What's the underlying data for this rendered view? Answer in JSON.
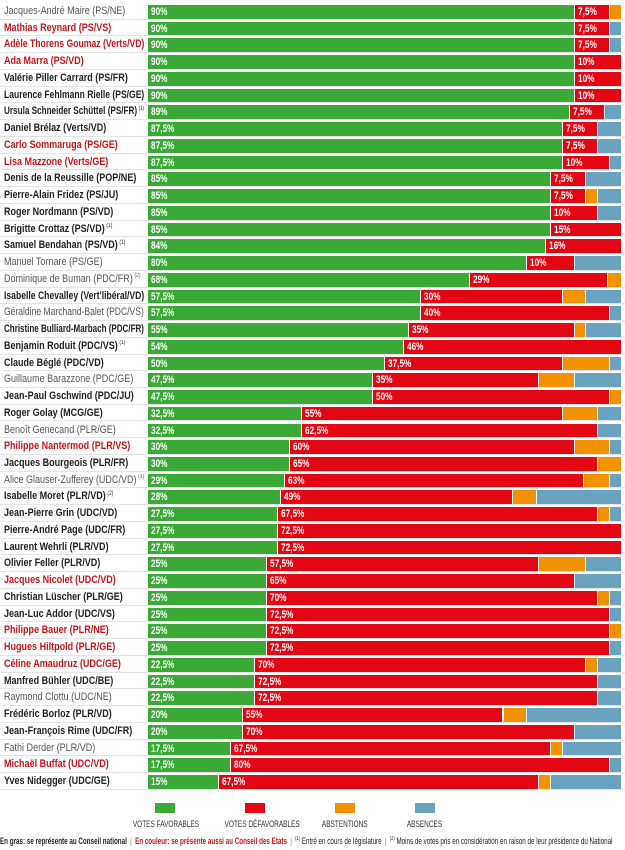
{
  "colors": {
    "favorable": "#3aa935",
    "defavorable": "#e30613",
    "abstention": "#f39200",
    "absence": "#6aa3bf",
    "name_red": "#c3161c"
  },
  "chart_data": {
    "type": "bar",
    "orientation": "horizontal-stacked-100",
    "unit": "%",
    "series_names": [
      "Votes favorables",
      "Votes défavorables",
      "Abstentions",
      "Absences"
    ],
    "rows": [
      {
        "name": "Jacques-André Maire (PS/NE)",
        "note": "",
        "style": "light",
        "fav": 90,
        "def": 7.5,
        "abst": 2.5,
        "abs": 0
      },
      {
        "name": "Mathias Reynard (PS/VS)",
        "note": "",
        "style": "red",
        "fav": 90,
        "def": 7.5,
        "abst": 0,
        "abs": 2.5
      },
      {
        "name": "Adèle Thorens Goumaz (Verts/VD)",
        "note": "",
        "style": "red",
        "fav": 90,
        "def": 7.5,
        "abst": 0,
        "abs": 2.5
      },
      {
        "name": "Ada Marra (PS/VD)",
        "note": "",
        "style": "red",
        "fav": 90,
        "def": 10,
        "abst": 0,
        "abs": 0
      },
      {
        "name": "Valérie Piller Carrard (PS/FR)",
        "note": "",
        "style": "bold",
        "fav": 90,
        "def": 10,
        "abst": 0,
        "abs": 0
      },
      {
        "name": "Laurence Fehlmann Rielle (PS/GE)",
        "note": "",
        "style": "bold",
        "fav": 90,
        "def": 10,
        "abst": 0,
        "abs": 0
      },
      {
        "name": "Ursula Schneider Schüttel (PS/FR)",
        "note": "1",
        "style": "bold",
        "fav": 89,
        "def": 7.5,
        "abst": 0,
        "abs": 3.5
      },
      {
        "name": "Daniel Brélaz (Verts/VD)",
        "note": "",
        "style": "bold",
        "fav": 87.5,
        "def": 7.5,
        "abst": 0,
        "abs": 5
      },
      {
        "name": "Carlo Sommaruga (PS/GE)",
        "note": "",
        "style": "red",
        "fav": 87.5,
        "def": 7.5,
        "abst": 0,
        "abs": 5
      },
      {
        "name": "Lisa Mazzone (Verts/GE)",
        "note": "",
        "style": "red",
        "fav": 87.5,
        "def": 10,
        "abst": 0,
        "abs": 2.5
      },
      {
        "name": "Denis de la Reussille (POP/NE)",
        "note": "",
        "style": "bold",
        "fav": 85,
        "def": 7.5,
        "abst": 0,
        "abs": 7.5
      },
      {
        "name": "Pierre-Alain Fridez (PS/JU)",
        "note": "",
        "style": "bold",
        "fav": 85,
        "def": 7.5,
        "abst": 2.5,
        "abs": 5
      },
      {
        "name": "Roger Nordmann (PS/VD)",
        "note": "",
        "style": "bold",
        "fav": 85,
        "def": 10,
        "abst": 0,
        "abs": 5
      },
      {
        "name": "Brigitte Crottaz (PS/VD)",
        "note": "1",
        "style": "bold",
        "fav": 85,
        "def": 15,
        "abst": 0,
        "abs": 0
      },
      {
        "name": "Samuel Bendahan (PS/VD)",
        "note": "1",
        "style": "bold",
        "fav": 84,
        "def": 16,
        "abst": 0,
        "abs": 0
      },
      {
        "name": "Manuel Tornare (PS/GE)",
        "note": "",
        "style": "light",
        "fav": 80,
        "def": 10,
        "abst": 0,
        "abs": 10
      },
      {
        "name": "Dominique de Buman (PDC/FR)",
        "note": "2",
        "style": "light",
        "fav": 68,
        "def": 29,
        "abst": 3,
        "abs": 0
      },
      {
        "name": "Isabelle Chevalley (Vert'libéral/VD)",
        "note": "",
        "style": "bold",
        "fav": 57.5,
        "def": 30,
        "abst": 5,
        "abs": 7.5
      },
      {
        "name": "Géraldine Marchand-Balet (PDC/VS)",
        "note": "",
        "style": "light",
        "fav": 57.5,
        "def": 40,
        "abst": 0,
        "abs": 2.5
      },
      {
        "name": "Christine Bulliard-Marbach (PDC/FR)",
        "note": "",
        "style": "bold",
        "fav": 55,
        "def": 35,
        "abst": 2.5,
        "abs": 7.5
      },
      {
        "name": "Benjamin Roduit (PDC/VS)",
        "note": "1",
        "style": "bold",
        "fav": 54,
        "def": 46,
        "abst": 0,
        "abs": 0
      },
      {
        "name": "Claude Béglé (PDC/VD)",
        "note": "",
        "style": "bold",
        "fav": 50,
        "def": 37.5,
        "abst": 10,
        "abs": 2.5
      },
      {
        "name": "Guillaume Barazzone (PDC/GE)",
        "note": "",
        "style": "light",
        "fav": 47.5,
        "def": 35,
        "abst": 7.5,
        "abs": 10
      },
      {
        "name": "Jean-Paul Gschwind (PDC/JU)",
        "note": "",
        "style": "bold",
        "fav": 47.5,
        "def": 50,
        "abst": 2.5,
        "abs": 0
      },
      {
        "name": "Roger Golay (MCG/GE)",
        "note": "",
        "style": "bold",
        "fav": 32.5,
        "def": 55,
        "abst": 7.5,
        "abs": 5
      },
      {
        "name": "Benoît Genecand (PLR/GE)",
        "note": "",
        "style": "light",
        "fav": 32.5,
        "def": 62.5,
        "abst": 0,
        "abs": 5
      },
      {
        "name": "Philippe Nantermod (PLR/VS)",
        "note": "",
        "style": "red",
        "fav": 30,
        "def": 60,
        "abst": 7.5,
        "abs": 2.5
      },
      {
        "name": "Jacques Bourgeois (PLR/FR)",
        "note": "",
        "style": "bold",
        "fav": 30,
        "def": 65,
        "abst": 5,
        "abs": 0
      },
      {
        "name": "Alice Glauser-Zufferey (UDC/VD)",
        "note": "1",
        "style": "light",
        "fav": 29,
        "def": 63,
        "abst": 5.5,
        "abs": 2.5
      },
      {
        "name": "Isabelle Moret (PLR/VD)",
        "note": "2",
        "style": "bold",
        "fav": 28,
        "def": 49,
        "abst": 5,
        "abs": 18
      },
      {
        "name": "Jean-Pierre Grin (UDC/VD)",
        "note": "",
        "style": "bold",
        "fav": 27.5,
        "def": 67.5,
        "abst": 2.5,
        "abs": 2.5
      },
      {
        "name": "Pierre-André Page (UDC/FR)",
        "note": "",
        "style": "bold",
        "fav": 27.5,
        "def": 72.5,
        "abst": 0,
        "abs": 0
      },
      {
        "name": "Laurent Wehrli (PLR/VD)",
        "note": "",
        "style": "bold",
        "fav": 27.5,
        "def": 72.5,
        "abst": 0,
        "abs": 0
      },
      {
        "name": "Olivier Feller (PLR/VD)",
        "note": "",
        "style": "bold",
        "fav": 25,
        "def": 57.5,
        "abst": 10,
        "abs": 7.5
      },
      {
        "name": "Jacques Nicolet (UDC/VD)",
        "note": "",
        "style": "red",
        "fav": 25,
        "def": 65,
        "abst": 0,
        "abs": 10
      },
      {
        "name": "Christian Lüscher (PLR/GE)",
        "note": "",
        "style": "bold",
        "fav": 25,
        "def": 70,
        "abst": 2.5,
        "abs": 2.5
      },
      {
        "name": "Jean-Luc Addor (UDC/VS)",
        "note": "",
        "style": "bold",
        "fav": 25,
        "def": 72.5,
        "abst": 0,
        "abs": 2.5
      },
      {
        "name": "Philippe Bauer (PLR/NE)",
        "note": "",
        "style": "red",
        "fav": 25,
        "def": 72.5,
        "abst": 2.5,
        "abs": 0
      },
      {
        "name": "Hugues Hiltpold (PLR/GE)",
        "note": "",
        "style": "red",
        "fav": 25,
        "def": 72.5,
        "abst": 0,
        "abs": 2.5
      },
      {
        "name": "Céline Amaudruz  (UDC/GE)",
        "note": "",
        "style": "red",
        "fav": 22.5,
        "def": 70,
        "abst": 2.5,
        "abs": 5
      },
      {
        "name": "Manfred Bühler (UDC/BE)",
        "note": "",
        "style": "bold",
        "fav": 22.5,
        "def": 72.5,
        "abst": 0,
        "abs": 5
      },
      {
        "name": "Raymond Clottu (UDC/NE)",
        "note": "",
        "style": "light",
        "fav": 22.5,
        "def": 72.5,
        "abst": 0,
        "abs": 5
      },
      {
        "name": "Frédéric Borloz (PLR/VD)",
        "note": "",
        "style": "bold",
        "fav": 20,
        "def": 55,
        "abst": 5,
        "abs": 20
      },
      {
        "name": "Jean-François Rime (UDC/FR)",
        "note": "",
        "style": "bold",
        "fav": 20,
        "def": 70,
        "abst": 0,
        "abs": 10
      },
      {
        "name": "Fathi Derder (PLR/VD)",
        "note": "",
        "style": "light",
        "fav": 17.5,
        "def": 67.5,
        "abst": 2.5,
        "abs": 12.5
      },
      {
        "name": "Michaël Buffat (UDC/VD)",
        "note": "",
        "style": "red",
        "fav": 17.5,
        "def": 80,
        "abst": 0,
        "abs": 2.5
      },
      {
        "name": "Yves Nidegger (UDC/GE)",
        "note": "",
        "style": "bold",
        "fav": 15,
        "def": 67.5,
        "abst": 2.5,
        "abs": 15
      }
    ]
  },
  "legend": {
    "favorable": "VOTES FAVORABLES",
    "defavorable": "VOTES DÉFAVORABLES",
    "abstention": "ABSTENTIONS",
    "absence": "ABSENCES"
  },
  "footer": {
    "bold_note": "En gras: se représente au Conseil national",
    "color_note": "En couleur: se présente aussi au Conseil des Etats",
    "note1_mark": "(1)",
    "note1": "Entré en cours de législature",
    "note2_mark": "(2)",
    "note2": "Moins de votes pris en considération en raison de leur présidence du National",
    "separator": "|"
  }
}
